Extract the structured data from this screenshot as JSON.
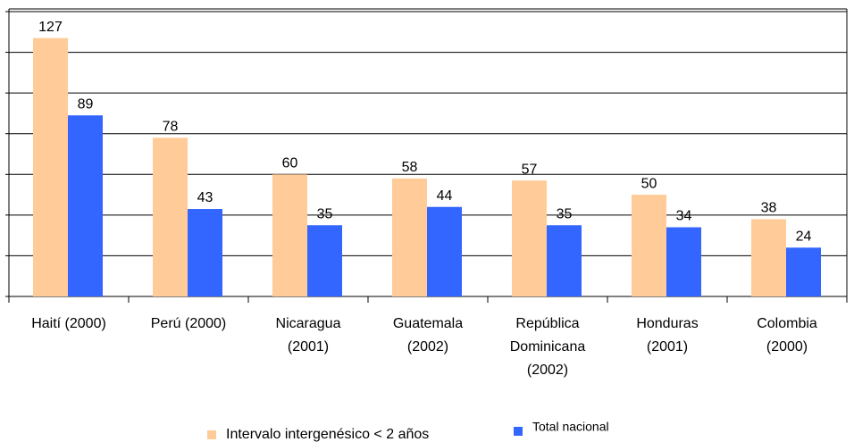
{
  "chart_data": {
    "type": "bar",
    "categories": [
      [
        "Haití (2000)"
      ],
      [
        "Perú (2000)"
      ],
      [
        "Nicaragua",
        "(2001)"
      ],
      [
        "Guatemala",
        "(2002)"
      ],
      [
        "República",
        "Dominicana",
        "(2002)"
      ],
      [
        "Honduras",
        "(2001)"
      ],
      [
        "Colombia",
        "(2000)"
      ]
    ],
    "series": [
      {
        "name": "Intervalo intergenésico < 2 años",
        "color": "#FFCC99",
        "values": [
          127,
          78,
          60,
          58,
          57,
          50,
          38
        ]
      },
      {
        "name": "Total nacional",
        "color": "#3366FF",
        "values": [
          89,
          43,
          35,
          44,
          35,
          34,
          24
        ]
      }
    ],
    "ylim": [
      0,
      140
    ],
    "yticks": [
      0,
      20,
      40,
      60,
      80,
      100,
      120,
      140
    ],
    "grid": true,
    "legend": "bottom"
  }
}
